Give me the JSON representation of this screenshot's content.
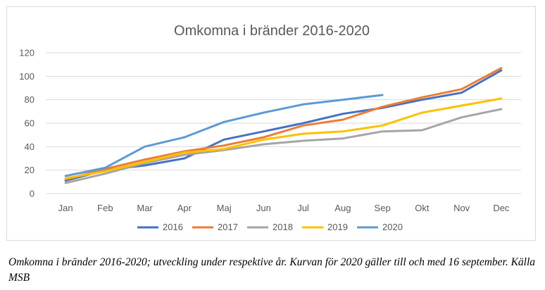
{
  "chart_data": {
    "type": "line",
    "title": "Omkomna i bränder 2016-2020",
    "xlabel": "",
    "ylabel": "",
    "categories": [
      "Jan",
      "Feb",
      "Mar",
      "Apr",
      "Maj",
      "Jun",
      "Jul",
      "Aug",
      "Sep",
      "Okt",
      "Nov",
      "Dec"
    ],
    "ylim": [
      0,
      120
    ],
    "yticks": [
      0,
      20,
      40,
      60,
      80,
      100,
      120
    ],
    "grid": true,
    "legend_position": "bottom",
    "series": [
      {
        "name": "2016",
        "color": "#4472c4",
        "values": [
          11,
          20,
          24,
          30,
          46,
          53,
          60,
          68,
          73,
          80,
          86,
          105
        ]
      },
      {
        "name": "2017",
        "color": "#ed7d31",
        "values": [
          12,
          21,
          29,
          36,
          41,
          48,
          58,
          63,
          74,
          82,
          89,
          107
        ]
      },
      {
        "name": "2018",
        "color": "#a5a5a5",
        "values": [
          9,
          17,
          26,
          33,
          37,
          42,
          45,
          47,
          53,
          54,
          65,
          72
        ]
      },
      {
        "name": "2019",
        "color": "#ffc000",
        "values": [
          13,
          19,
          27,
          35,
          38,
          46,
          51,
          53,
          58,
          69,
          75,
          81
        ]
      },
      {
        "name": "2020",
        "color": "#5b9bd5",
        "values": [
          15,
          22,
          40,
          48,
          61,
          69,
          76,
          80,
          84,
          null,
          null,
          null
        ]
      }
    ]
  },
  "caption": "Omkomna i bränder 2016-2020; utveckling under respektive år. Kurvan för 2020 gäller till och med 16 september. Källa MSB"
}
